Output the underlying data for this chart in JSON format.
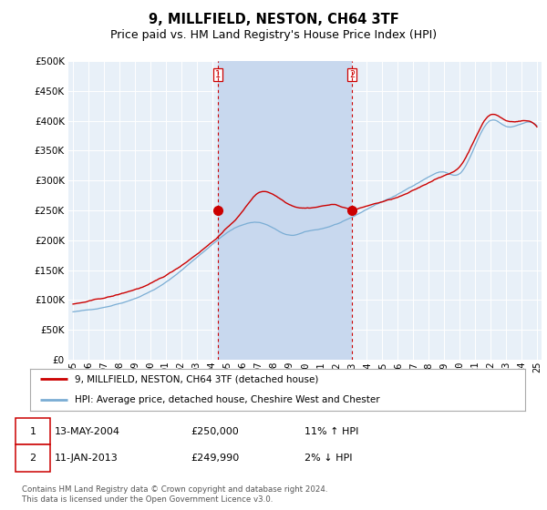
{
  "title": "9, MILLFIELD, NESTON, CH64 3TF",
  "subtitle": "Price paid vs. HM Land Registry's House Price Index (HPI)",
  "ylim": [
    0,
    500000
  ],
  "yticks": [
    0,
    50000,
    100000,
    150000,
    200000,
    250000,
    300000,
    350000,
    400000,
    450000,
    500000
  ],
  "background_color": "#ffffff",
  "plot_bg_color": "#e8f0f8",
  "highlight_color": "#c8d8ee",
  "grid_color": "#ffffff",
  "sale1_x": 9.37,
  "sale1_price": 250000,
  "sale2_x": 18.04,
  "sale2_price": 249990,
  "legend_entry1": "9, MILLFIELD, NESTON, CH64 3TF (detached house)",
  "legend_entry2": "HPI: Average price, detached house, Cheshire West and Chester",
  "table_row1": [
    "1",
    "13-MAY-2004",
    "£250,000",
    "11% ↑ HPI"
  ],
  "table_row2": [
    "2",
    "11-JAN-2013",
    "£249,990",
    "2% ↓ HPI"
  ],
  "footnote": "Contains HM Land Registry data © Crown copyright and database right 2024.\nThis data is licensed under the Open Government Licence v3.0.",
  "line_color_property": "#cc0000",
  "line_color_hpi": "#7aadd4",
  "vline_color": "#cc0000",
  "title_fontsize": 10.5,
  "subtitle_fontsize": 9,
  "tick_fontsize": 7.5,
  "n_points": 361,
  "x_start_year": 1995,
  "x_end_year": 2025,
  "hpi_seed_values": [
    80000,
    83000,
    88000,
    95000,
    104000,
    116000,
    131000,
    151000,
    173000,
    195000,
    215000,
    228000,
    232000,
    222000,
    210000,
    215000,
    220000,
    228000,
    238000,
    252000,
    265000,
    277000,
    292000,
    307000,
    315000,
    312000,
    358000,
    400000,
    390000,
    395000,
    392000
  ],
  "prop_seed_values": [
    93000,
    97000,
    102000,
    108000,
    116000,
    125000,
    138000,
    155000,
    175000,
    196000,
    220000,
    248000,
    278000,
    275000,
    260000,
    255000,
    258000,
    260000,
    253000,
    258000,
    265000,
    272000,
    282000,
    295000,
    308000,
    322000,
    370000,
    410000,
    400000,
    400000,
    390000
  ]
}
